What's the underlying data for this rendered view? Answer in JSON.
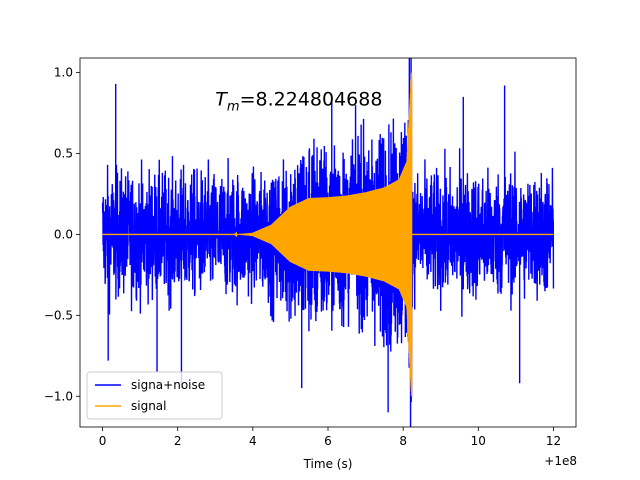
{
  "chart_data": {
    "type": "line",
    "title": "",
    "xlabel": "Time (s)",
    "ylabel": "",
    "x_offset_label": "+1e8",
    "xlim": [
      -0.6,
      12.6
    ],
    "ylim": [
      -1.19,
      1.09
    ],
    "x_ticks": [
      0,
      2,
      4,
      6,
      8,
      10,
      12
    ],
    "x_tick_labels": [
      "0",
      "2",
      "4",
      "6",
      "8",
      "10",
      "12"
    ],
    "y_ticks": [
      -1.0,
      -0.5,
      0.0,
      0.5,
      1.0
    ],
    "y_tick_labels": [
      "−1.0",
      "−0.5",
      "0.0",
      "0.5",
      "1.0"
    ],
    "grid": false,
    "legend_position": "lower-left",
    "annotation": {
      "prefix": "T",
      "subscript": "m",
      "suffix": "=8.224804688",
      "x": 3.0,
      "y": 0.84
    },
    "series": [
      {
        "name": "signa+noise",
        "color": "#0000ff",
        "x_range": [
          0,
          12
        ],
        "noise_envelope": 0.48,
        "max": 0.93,
        "min": -1.1,
        "peak_points": [
          {
            "x": 0.35,
            "y": 0.93
          },
          {
            "x": 0.15,
            "y": -0.78
          },
          {
            "x": 1.45,
            "y": -0.85
          },
          {
            "x": 2.1,
            "y": -0.95
          },
          {
            "x": 5.3,
            "y": -0.95
          },
          {
            "x": 6.1,
            "y": 0.82
          },
          {
            "x": 7.6,
            "y": -1.1
          },
          {
            "x": 10.7,
            "y": 0.92
          },
          {
            "x": 11.1,
            "y": -0.92
          },
          {
            "x": 9.6,
            "y": 0.85
          }
        ]
      },
      {
        "name": "signal",
        "color": "#ffa500",
        "x_range": [
          0,
          12
        ],
        "chirp_start": 3.5,
        "chirp_end": 8.2248,
        "plateau_amplitude": 0.23,
        "peak_max": 1.0,
        "peak_min": -0.88,
        "envelope": [
          {
            "x": 3.5,
            "a": 0.0
          },
          {
            "x": 4.0,
            "a": 0.01
          },
          {
            "x": 4.5,
            "a": 0.06
          },
          {
            "x": 5.0,
            "a": 0.17
          },
          {
            "x": 5.5,
            "a": 0.225
          },
          {
            "x": 6.0,
            "a": 0.23
          },
          {
            "x": 6.5,
            "a": 0.24
          },
          {
            "x": 7.0,
            "a": 0.26
          },
          {
            "x": 7.5,
            "a": 0.29
          },
          {
            "x": 7.9,
            "a": 0.34
          },
          {
            "x": 8.1,
            "a": 0.45
          },
          {
            "x": 8.2248,
            "a": 1.0
          }
        ]
      }
    ]
  }
}
